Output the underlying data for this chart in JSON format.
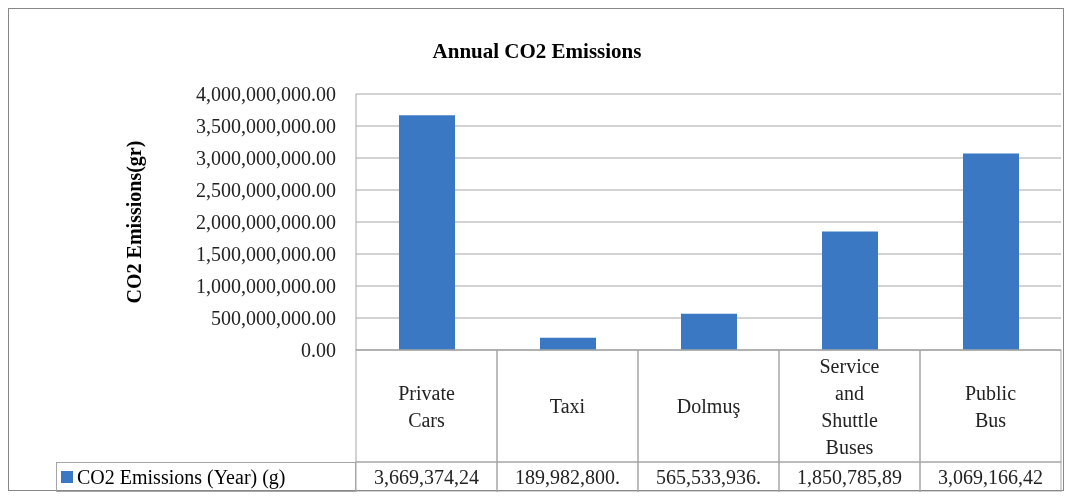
{
  "chart_data": {
    "type": "bar",
    "title": "Annual CO2 Emissions",
    "ylabel": "CO2 Emissions(gr)",
    "categories": [
      "Private Cars",
      "Taxi",
      "Dolmuş",
      "Service and Shuttle Buses",
      "Public Bus"
    ],
    "series": [
      {
        "name": "CO2 Emissions (Year) (g)",
        "color": "#3b78c4",
        "values": [
          3669374240,
          189982800,
          565533936,
          1850785890,
          3069166420
        ],
        "value_labels": [
          "3,669,374,24",
          "189,982,800.",
          "565,533,936.",
          "1,850,785,89",
          "3,069,166,42"
        ]
      }
    ],
    "ylim": [
      0,
      4000000000
    ],
    "yticks": [
      {
        "value": 0,
        "label": "0.00"
      },
      {
        "value": 500000000,
        "label": "500,000,000.00"
      },
      {
        "value": 1000000000,
        "label": "1,000,000,000.00"
      },
      {
        "value": 1500000000,
        "label": "1,500,000,000.00"
      },
      {
        "value": 2000000000,
        "label": "2,000,000,000.00"
      },
      {
        "value": 2500000000,
        "label": "2,500,000,000.00"
      },
      {
        "value": 3000000000,
        "label": "3,000,000,000.00"
      },
      {
        "value": 3500000000,
        "label": "3,500,000,000.00"
      },
      {
        "value": 4000000000,
        "label": "4,000,000,000.00"
      }
    ],
    "grid": "y",
    "legend": "bottom"
  }
}
